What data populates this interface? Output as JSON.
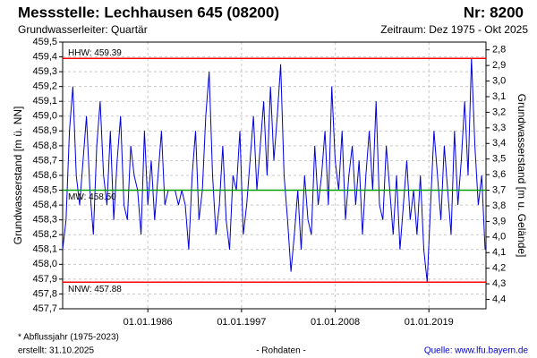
{
  "chart_data": {
    "type": "line",
    "title": "Messstelle: Lechhausen 645 (08200)",
    "number": "Nr: 8200",
    "subtitle": "Grundwasserleiter: Quartär",
    "period": "Zeitraum: Dez 1975 - Okt 2025",
    "ylabel": "Grundwasserstand [m ü. NN]",
    "y2label": "Grundwasserstand [m u. Gelände]",
    "footnote": "* Abflussjahr (1975-2023)",
    "created": "erstellt:  31.10.2025",
    "note": "- Rohdaten -",
    "source": "Quelle: www.lfu.bayern.de",
    "grid": true,
    "xlim": [
      1976.0,
      2025.7
    ],
    "xticks": [
      {
        "value": 1986,
        "label": "01.01.1986"
      },
      {
        "value": 1997,
        "label": "01.01.1997"
      },
      {
        "value": 2008,
        "label": "01.01.2008"
      },
      {
        "value": 2019,
        "label": "01.01.2019"
      }
    ],
    "ylim": [
      457.7,
      459.5
    ],
    "yticks": [
      {
        "value": 459.5,
        "label": "459,5"
      },
      {
        "value": 459.4,
        "label": "459,4"
      },
      {
        "value": 459.3,
        "label": "459,3"
      },
      {
        "value": 459.2,
        "label": "459,2"
      },
      {
        "value": 459.1,
        "label": "459,1"
      },
      {
        "value": 459.0,
        "label": "459,0"
      },
      {
        "value": 458.9,
        "label": "458,9"
      },
      {
        "value": 458.8,
        "label": "458,8"
      },
      {
        "value": 458.7,
        "label": "458,7"
      },
      {
        "value": 458.6,
        "label": "458,6"
      },
      {
        "value": 458.5,
        "label": "458,5"
      },
      {
        "value": 458.4,
        "label": "458,4"
      },
      {
        "value": 458.3,
        "label": "458,3"
      },
      {
        "value": 458.2,
        "label": "458,2"
      },
      {
        "value": 458.1,
        "label": "458,1"
      },
      {
        "value": 458.0,
        "label": "458,0"
      },
      {
        "value": 457.9,
        "label": "457,9"
      },
      {
        "value": 457.8,
        "label": "457,8"
      },
      {
        "value": 457.7,
        "label": "457,7"
      }
    ],
    "y2lim": [
      4.46,
      2.75
    ],
    "y2ticks": [
      {
        "value": 2.8,
        "label": "2,8"
      },
      {
        "value": 2.9,
        "label": "2,9"
      },
      {
        "value": 3.0,
        "label": "3,0"
      },
      {
        "value": 3.1,
        "label": "3,1"
      },
      {
        "value": 3.2,
        "label": "3,2"
      },
      {
        "value": 3.3,
        "label": "3,3"
      },
      {
        "value": 3.4,
        "label": "3,4"
      },
      {
        "value": 3.5,
        "label": "3,5"
      },
      {
        "value": 3.6,
        "label": "3,6"
      },
      {
        "value": 3.7,
        "label": "3,7"
      },
      {
        "value": 3.8,
        "label": "3,8"
      },
      {
        "value": 3.9,
        "label": "3,9"
      },
      {
        "value": 4.0,
        "label": "4,0"
      },
      {
        "value": 4.1,
        "label": "4,1"
      },
      {
        "value": 4.2,
        "label": "4,2"
      },
      {
        "value": 4.3,
        "label": "4,3"
      },
      {
        "value": 4.4,
        "label": "4,4"
      }
    ],
    "reference_lines": [
      {
        "label": "HHW: 459.39",
        "value": 459.39,
        "color": "#ff0000"
      },
      {
        "label": "MW: 458.50",
        "value": 458.5,
        "color": "#00a000"
      },
      {
        "label": "NNW: 457.88",
        "value": 457.88,
        "color": "#ff0000"
      }
    ],
    "x": [
      1976,
      1976.4,
      1976.8,
      1977.2,
      1977.6,
      1978,
      1978.4,
      1978.8,
      1979.2,
      1979.6,
      1980,
      1980.4,
      1980.8,
      1981.2,
      1981.6,
      1982,
      1982.4,
      1982.8,
      1983.2,
      1983.6,
      1984,
      1984.4,
      1984.8,
      1985.2,
      1985.6,
      1986,
      1986.4,
      1986.8,
      1987.2,
      1987.6,
      1988,
      1988.4,
      1988.8,
      1989.2,
      1989.6,
      1990,
      1990.4,
      1990.8,
      1991.2,
      1991.6,
      1992,
      1992.4,
      1992.8,
      1993.2,
      1993.6,
      1994,
      1994.4,
      1994.8,
      1995.2,
      1995.6,
      1996,
      1996.4,
      1996.8,
      1997.2,
      1997.6,
      1998,
      1998.4,
      1998.8,
      1999.2,
      1999.6,
      2000,
      2000.4,
      2000.8,
      2001.2,
      2001.6,
      2002,
      2002.4,
      2002.8,
      2003.2,
      2003.6,
      2004,
      2004.4,
      2004.8,
      2005.2,
      2005.6,
      2006,
      2006.4,
      2006.8,
      2007.2,
      2007.6,
      2008,
      2008.4,
      2008.8,
      2009.2,
      2009.6,
      2010,
      2010.4,
      2010.8,
      2011.2,
      2011.6,
      2012,
      2012.4,
      2012.8,
      2013.2,
      2013.6,
      2014,
      2014.4,
      2014.8,
      2015.2,
      2015.6,
      2016,
      2016.4,
      2016.8,
      2017.2,
      2017.6,
      2018,
      2018.4,
      2018.8,
      2019.2,
      2019.6,
      2020,
      2020.4,
      2020.8,
      2021.2,
      2021.6,
      2022,
      2022.4,
      2022.8,
      2023.2,
      2023.6,
      2024,
      2024.4,
      2024.8,
      2025.2,
      2025.6
    ],
    "series": [
      {
        "color": "#0000dd",
        "values": [
          458.1,
          458.3,
          458.9,
          459.2,
          458.6,
          458.4,
          458.7,
          459.0,
          458.5,
          458.2,
          458.8,
          459.1,
          458.6,
          458.4,
          458.9,
          458.3,
          458.7,
          459.0,
          458.4,
          458.3,
          458.8,
          458.6,
          458.5,
          458.2,
          458.9,
          458.4,
          458.7,
          458.3,
          458.6,
          458.9,
          458.4,
          458.5,
          458.5,
          458.5,
          458.4,
          458.5,
          458.4,
          458.1,
          458.6,
          458.9,
          458.3,
          458.5,
          459.0,
          459.3,
          458.6,
          458.2,
          458.4,
          458.8,
          458.3,
          458.1,
          458.6,
          458.5,
          458.9,
          458.2,
          458.4,
          458.7,
          459.0,
          458.5,
          458.8,
          459.1,
          458.6,
          459.2,
          458.7,
          459.0,
          459.35,
          458.6,
          458.3,
          457.95,
          458.2,
          458.5,
          458.1,
          458.6,
          458.3,
          458.2,
          458.8,
          458.4,
          458.6,
          458.9,
          458.4,
          459.2,
          458.7,
          458.5,
          458.9,
          458.3,
          458.6,
          458.8,
          458.4,
          458.7,
          458.2,
          458.6,
          458.9,
          458.5,
          459.1,
          458.4,
          458.3,
          458.8,
          458.5,
          458.2,
          458.6,
          458.1,
          458.4,
          458.7,
          458.3,
          458.5,
          458.2,
          458.6,
          458.1,
          457.88,
          458.4,
          458.9,
          458.6,
          458.3,
          458.8,
          458.5,
          458.2,
          458.9,
          458.4,
          458.7,
          459.1,
          458.6,
          459.39,
          458.8,
          458.4,
          458.6,
          458.1
        ]
      }
    ]
  }
}
